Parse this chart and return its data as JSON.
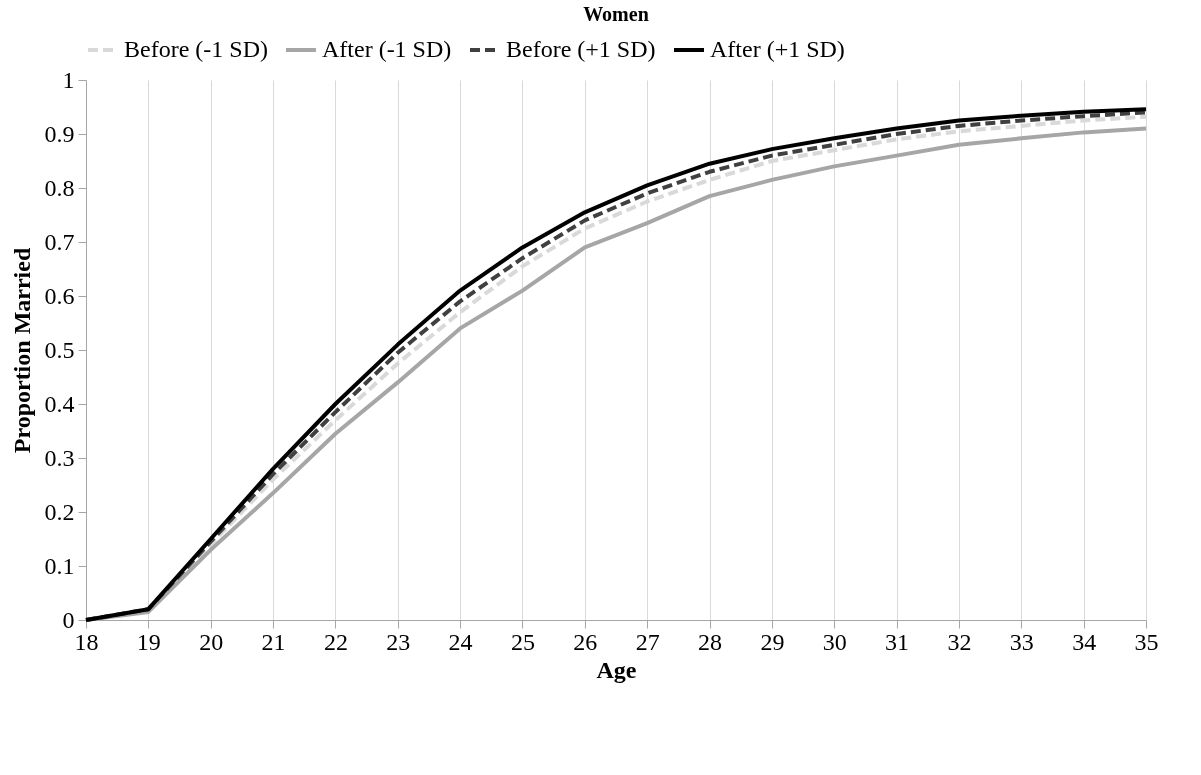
{
  "chart_data": {
    "type": "line",
    "title": "Women",
    "xlabel": "Age",
    "ylabel": "Proportion Married",
    "x": [
      18,
      19,
      20,
      21,
      22,
      23,
      24,
      25,
      26,
      27,
      28,
      29,
      30,
      31,
      32,
      33,
      34,
      35
    ],
    "xlim": [
      18,
      35
    ],
    "xticks": [
      18,
      19,
      20,
      21,
      22,
      23,
      24,
      25,
      26,
      27,
      28,
      29,
      30,
      31,
      32,
      33,
      34,
      35
    ],
    "ylim": [
      0,
      1
    ],
    "yticks": [
      0,
      0.1,
      0.2,
      0.3,
      0.4,
      0.5,
      0.6,
      0.7,
      0.8,
      0.9,
      1
    ],
    "grid": "x",
    "legend": "top",
    "marker": "none",
    "series": [
      {
        "name": "Before (-1 SD)",
        "color": "#d9d9d9",
        "line_style": "dashed",
        "values": [
          0,
          0.02,
          0.14,
          0.26,
          0.37,
          0.475,
          0.57,
          0.655,
          0.725,
          0.775,
          0.815,
          0.85,
          0.87,
          0.89,
          0.905,
          0.915,
          0.925,
          0.932
        ]
      },
      {
        "name": "After (-1 SD)",
        "color": "#a6a6a6",
        "line_style": "solid",
        "values": [
          0,
          0.015,
          0.13,
          0.235,
          0.345,
          0.44,
          0.54,
          0.61,
          0.69,
          0.735,
          0.785,
          0.815,
          0.84,
          0.86,
          0.88,
          0.892,
          0.903,
          0.91
        ]
      },
      {
        "name": "Before (+1 SD)",
        "color": "#404040",
        "line_style": "dashed",
        "values": [
          0,
          0.02,
          0.145,
          0.27,
          0.385,
          0.495,
          0.59,
          0.67,
          0.74,
          0.79,
          0.83,
          0.86,
          0.88,
          0.9,
          0.915,
          0.925,
          0.933,
          0.94
        ]
      },
      {
        "name": "After (+1 SD)",
        "color": "#000000",
        "line_style": "solid",
        "values": [
          0,
          0.02,
          0.15,
          0.28,
          0.4,
          0.51,
          0.61,
          0.69,
          0.755,
          0.805,
          0.845,
          0.872,
          0.892,
          0.91,
          0.925,
          0.934,
          0.941,
          0.946
        ]
      }
    ]
  }
}
